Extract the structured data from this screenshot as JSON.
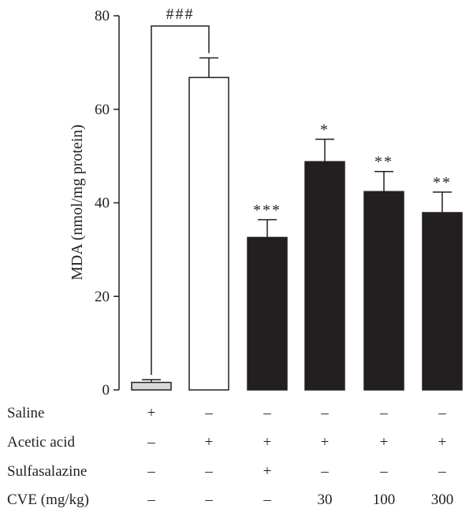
{
  "chart_data": {
    "type": "bar",
    "ylabel": "MDA (nmol/mg protein)",
    "ylim": [
      0,
      80
    ],
    "yticks": [
      0,
      20,
      40,
      60,
      80
    ],
    "bars": [
      {
        "value": 1.6,
        "error": 0.6,
        "fill": "#d9d9d9",
        "sig": ""
      },
      {
        "value": 66.8,
        "error": 4.2,
        "fill": "#ffffff",
        "sig": ""
      },
      {
        "value": 32.6,
        "error": 3.8,
        "fill": "#231f20",
        "sig": "***"
      },
      {
        "value": 48.8,
        "error": 4.8,
        "fill": "#231f20",
        "sig": "*"
      },
      {
        "value": 42.4,
        "error": 4.3,
        "fill": "#231f20",
        "sig": "**"
      },
      {
        "value": 37.9,
        "error": 4.4,
        "fill": "#231f20",
        "sig": "**"
      }
    ],
    "comparison": {
      "from": 0,
      "to": 1,
      "label": "###"
    },
    "treatment_table": [
      {
        "label": "Saline",
        "values": [
          "+",
          "–",
          "–",
          "–",
          "–",
          "–"
        ]
      },
      {
        "label": "Acetic acid",
        "values": [
          "–",
          "+",
          "+",
          "+",
          "+",
          "+"
        ]
      },
      {
        "label": "Sulfasalazine",
        "values": [
          "–",
          "–",
          "+",
          "–",
          "–",
          "–"
        ]
      },
      {
        "label": "CVE (mg/kg)",
        "values": [
          "–",
          "–",
          "–",
          "30",
          "100",
          "300"
        ]
      }
    ]
  }
}
